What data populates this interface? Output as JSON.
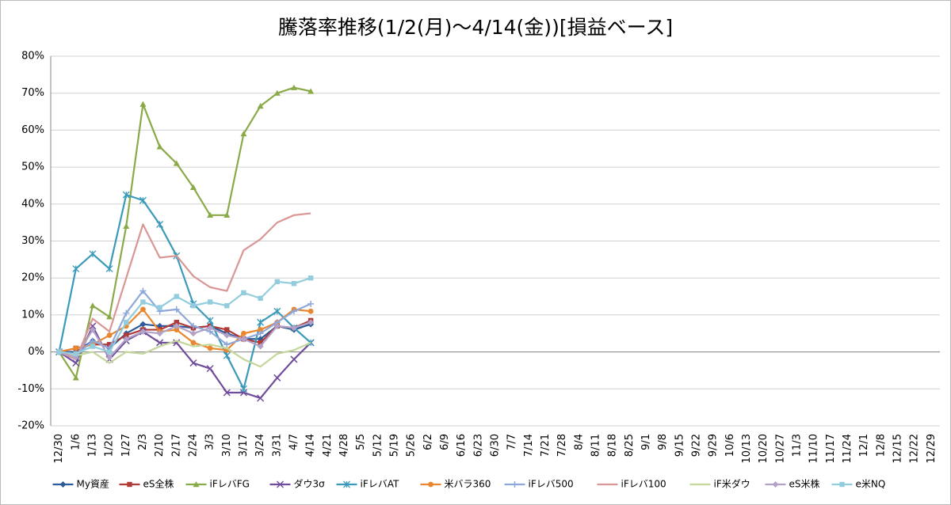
{
  "chart_data": {
    "type": "line",
    "title": "騰落率推移(1/2(月)～4/14(金))[損益ベース]",
    "categories": [
      "12/30",
      "1/6",
      "1/13",
      "1/20",
      "1/27",
      "2/3",
      "2/10",
      "2/17",
      "2/24",
      "3/3",
      "3/10",
      "3/17",
      "3/24",
      "3/31",
      "4/7",
      "4/14",
      "4/21",
      "4/28",
      "5/5",
      "5/12",
      "5/19",
      "5/26",
      "6/2",
      "6/9",
      "6/16",
      "6/23",
      "6/30",
      "7/7",
      "7/14",
      "7/21",
      "7/28",
      "8/4",
      "8/11",
      "8/18",
      "8/25",
      "9/1",
      "9/8",
      "9/15",
      "9/22",
      "9/29",
      "10/6",
      "10/13",
      "10/20",
      "10/27",
      "11/3",
      "11/10",
      "11/17",
      "11/24",
      "12/1",
      "12/8",
      "12/15",
      "12/22",
      "12/29"
    ],
    "ylim": [
      -20,
      80
    ],
    "yticks": [
      {
        "value": -20,
        "label": "-20%"
      },
      {
        "value": -10,
        "label": "-10%"
      },
      {
        "value": 0,
        "label": "0%"
      },
      {
        "value": 10,
        "label": "10%"
      },
      {
        "value": 20,
        "label": "20%"
      },
      {
        "value": 30,
        "label": "30%"
      },
      {
        "value": 40,
        "label": "40%"
      },
      {
        "value": 50,
        "label": "50%"
      },
      {
        "value": 60,
        "label": "60%"
      },
      {
        "value": 70,
        "label": "70%"
      },
      {
        "value": 80,
        "label": "80%"
      }
    ],
    "grid": true,
    "legend": "bottom",
    "series": [
      {
        "name": "My資産",
        "color": "#2e5b9a",
        "marker": "diamond",
        "values": [
          0,
          0,
          3,
          1,
          5,
          7.5,
          7,
          7,
          6.5,
          7,
          5,
          3.5,
          3.5,
          7,
          6,
          7.5,
          null,
          null,
          null,
          null,
          null,
          null,
          null,
          null,
          null,
          null,
          null,
          null,
          null,
          null,
          null,
          null,
          null,
          null,
          null,
          null,
          null,
          null,
          null,
          null,
          null,
          null,
          null,
          null,
          null,
          null,
          null,
          null,
          null,
          null,
          null,
          null,
          null
        ]
      },
      {
        "name": "eS全株",
        "color": "#b03a38",
        "marker": "square",
        "values": [
          0,
          1,
          2,
          2,
          4.5,
          6,
          6,
          8,
          6.5,
          7,
          6,
          3.5,
          2.5,
          7,
          6.5,
          8.5,
          null,
          null,
          null,
          null,
          null,
          null,
          null,
          null,
          null,
          null,
          null,
          null,
          null,
          null,
          null,
          null,
          null,
          null,
          null,
          null,
          null,
          null,
          null,
          null,
          null,
          null,
          null,
          null,
          null,
          null,
          null,
          null,
          null,
          null,
          null,
          null,
          null
        ]
      },
      {
        "name": "iFレバFG",
        "color": "#8aaa48",
        "marker": "triangle",
        "values": [
          0,
          -7,
          12.5,
          9.5,
          34,
          67,
          55.5,
          51,
          44.5,
          37,
          37,
          59,
          66.5,
          70,
          71.5,
          70.5,
          null,
          null,
          null,
          null,
          null,
          null,
          null,
          null,
          null,
          null,
          null,
          null,
          null,
          null,
          null,
          null,
          null,
          null,
          null,
          null,
          null,
          null,
          null,
          null,
          null,
          null,
          null,
          null,
          null,
          null,
          null,
          null,
          null,
          null,
          null,
          null,
          null
        ]
      },
      {
        "name": "ダウ3σ",
        "color": "#6f4d9b",
        "marker": "x",
        "values": [
          0,
          -3,
          7,
          -2,
          3,
          5.5,
          2.5,
          2.5,
          -3,
          -4.5,
          -11,
          -11,
          -12.5,
          -7,
          -2,
          2.5,
          null,
          null,
          null,
          null,
          null,
          null,
          null,
          null,
          null,
          null,
          null,
          null,
          null,
          null,
          null,
          null,
          null,
          null,
          null,
          null,
          null,
          null,
          null,
          null,
          null,
          null,
          null,
          null,
          null,
          null,
          null,
          null,
          null,
          null,
          null,
          null,
          null
        ]
      },
      {
        "name": "iFレバAT",
        "color": "#3b9ab9",
        "marker": "star",
        "values": [
          0,
          22.5,
          26.5,
          22.5,
          42.5,
          41,
          34.5,
          26,
          13,
          8.5,
          -1,
          -10,
          8,
          11,
          6.5,
          2.5,
          null,
          null,
          null,
          null,
          null,
          null,
          null,
          null,
          null,
          null,
          null,
          null,
          null,
          null,
          null,
          null,
          null,
          null,
          null,
          null,
          null,
          null,
          null,
          null,
          null,
          null,
          null,
          null,
          null,
          null,
          null,
          null,
          null,
          null,
          null,
          null,
          null
        ]
      },
      {
        "name": "米バラ360",
        "color": "#e8872f",
        "marker": "circle",
        "values": [
          0,
          1,
          2,
          4.5,
          7,
          11.5,
          5.5,
          6,
          2.5,
          1,
          0.5,
          5,
          6,
          8,
          11.5,
          11,
          null,
          null,
          null,
          null,
          null,
          null,
          null,
          null,
          null,
          null,
          null,
          null,
          null,
          null,
          null,
          null,
          null,
          null,
          null,
          null,
          null,
          null,
          null,
          null,
          null,
          null,
          null,
          null,
          null,
          null,
          null,
          null,
          null,
          null,
          null,
          null,
          null
        ]
      },
      {
        "name": "iFレバ500",
        "color": "#8ea8da",
        "marker": "plus",
        "values": [
          0,
          -1,
          3,
          1,
          10.5,
          16.5,
          11,
          11.5,
          7,
          5.5,
          2,
          3.5,
          5,
          8,
          11,
          13,
          null,
          null,
          null,
          null,
          null,
          null,
          null,
          null,
          null,
          null,
          null,
          null,
          null,
          null,
          null,
          null,
          null,
          null,
          null,
          null,
          null,
          null,
          null,
          null,
          null,
          null,
          null,
          null,
          null,
          null,
          null,
          null,
          null,
          null,
          null,
          null,
          null
        ]
      },
      {
        "name": "iFレバ100",
        "color": "#d99694",
        "marker": "none",
        "values": [
          0,
          -2,
          9,
          5.5,
          20,
          34.5,
          25.5,
          26,
          20.5,
          17.5,
          16.5,
          27.5,
          30.5,
          35,
          37,
          37.5,
          null,
          null,
          null,
          null,
          null,
          null,
          null,
          null,
          null,
          null,
          null,
          null,
          null,
          null,
          null,
          null,
          null,
          null,
          null,
          null,
          null,
          null,
          null,
          null,
          null,
          null,
          null,
          null,
          null,
          null,
          null,
          null,
          null,
          null,
          null,
          null,
          null
        ]
      },
      {
        "name": "iF米ダウ",
        "color": "#c3d69b",
        "marker": "none",
        "values": [
          0,
          -1,
          0,
          -3,
          0,
          -0.5,
          1.5,
          3,
          1.5,
          2,
          1,
          -2,
          -4,
          -0.5,
          0.5,
          2.5,
          null,
          null,
          null,
          null,
          null,
          null,
          null,
          null,
          null,
          null,
          null,
          null,
          null,
          null,
          null,
          null,
          null,
          null,
          null,
          null,
          null,
          null,
          null,
          null,
          null,
          null,
          null,
          null,
          null,
          null,
          null,
          null,
          null,
          null,
          null,
          null,
          null
        ]
      },
      {
        "name": "eS米株",
        "color": "#b3a2c7",
        "marker": "diamond",
        "values": [
          0,
          -1.5,
          6,
          -1.5,
          3.5,
          5.5,
          5,
          7,
          5,
          6.5,
          4.5,
          3.5,
          1.5,
          7,
          6.5,
          8,
          null,
          null,
          null,
          null,
          null,
          null,
          null,
          null,
          null,
          null,
          null,
          null,
          null,
          null,
          null,
          null,
          null,
          null,
          null,
          null,
          null,
          null,
          null,
          null,
          null,
          null,
          null,
          null,
          null,
          null,
          null,
          null,
          null,
          null,
          null,
          null,
          null
        ]
      },
      {
        "name": "e米NQ",
        "color": "#93cddd",
        "marker": "square",
        "values": [
          0,
          -0.5,
          1.5,
          0,
          8,
          13.5,
          12,
          15,
          12.5,
          13.5,
          12.5,
          16,
          14.5,
          19,
          18.5,
          20,
          null,
          null,
          null,
          null,
          null,
          null,
          null,
          null,
          null,
          null,
          null,
          null,
          null,
          null,
          null,
          null,
          null,
          null,
          null,
          null,
          null,
          null,
          null,
          null,
          null,
          null,
          null,
          null,
          null,
          null,
          null,
          null,
          null,
          null,
          null,
          null,
          null
        ]
      }
    ]
  }
}
